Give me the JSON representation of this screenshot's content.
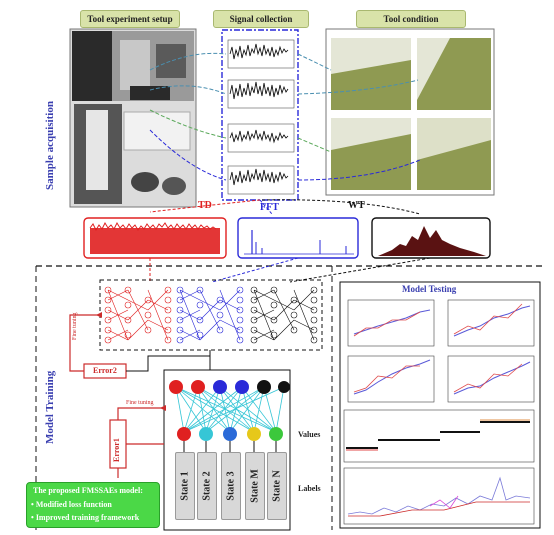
{
  "headers": {
    "setup": "Tool experiment setup",
    "signal": "Signal collection",
    "condition": "Tool condition"
  },
  "side": {
    "sample": "Sample acquisition",
    "training": "Model Training"
  },
  "transforms": {
    "td": "TD",
    "fft": "FFT",
    "wt": "WT"
  },
  "training": {
    "fine1": "Fine tuning",
    "error2": "Error2",
    "fine2": "Fine tuning",
    "error1": "Error1",
    "states": [
      "State 1",
      "State 2",
      "State 3",
      "State M",
      "State N"
    ]
  },
  "testing": {
    "title": "Model Testing",
    "values": "Values",
    "labels": "Labels"
  },
  "model_box": {
    "title": "The proposed FMSSAEs model:",
    "items": [
      "Modified loss function",
      "Improved training framework"
    ]
  },
  "colors": {
    "red": "#e02020",
    "blue": "#2a2ad8",
    "black": "#111111",
    "header_bg": "#d9e3a9",
    "green": "#4bd847",
    "label_blue": "#3a3fb0"
  }
}
